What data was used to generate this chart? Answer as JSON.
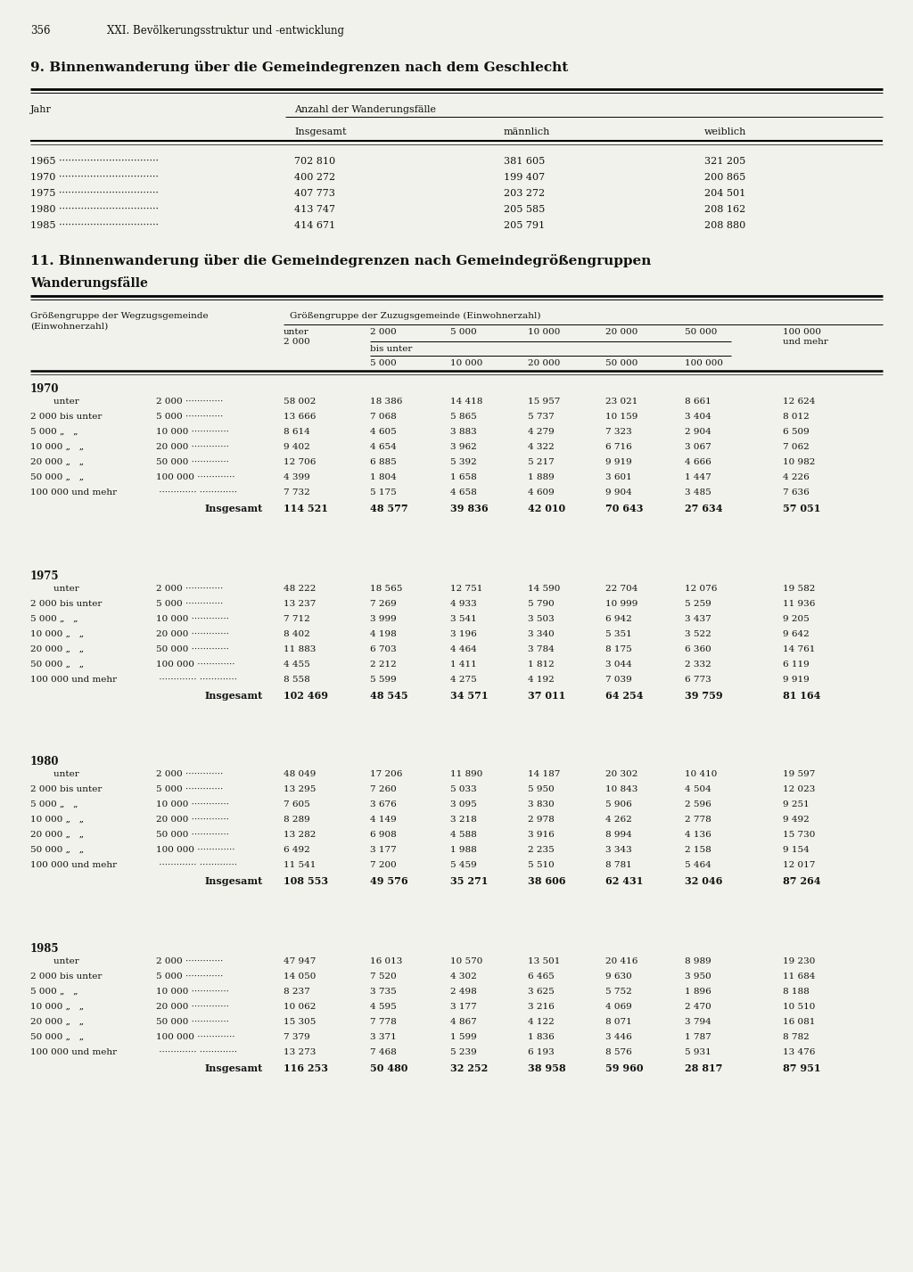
{
  "page_num": "356",
  "chapter": "XXI. Bevölkerungsstruktur und -entwicklung",
  "table1_title": "9. Binnenwanderung über die Gemeindegrenzen nach dem Geschlecht",
  "table1_col_header1": "Jahr",
  "table1_col_header2": "Anzahl der Wanderungsfälle",
  "table1_sub_headers": [
    "Insgesamt",
    "männlich",
    "weiblich"
  ],
  "table1_data": [
    [
      "1965",
      "702 810",
      "381 605",
      "321 205"
    ],
    [
      "1970",
      "400 272",
      "199 407",
      "200 865"
    ],
    [
      "1975",
      "407 773",
      "203 272",
      "204 501"
    ],
    [
      "1980",
      "413 747",
      "205 585",
      "208 162"
    ],
    [
      "1985",
      "414 671",
      "205 791",
      "208 880"
    ]
  ],
  "table2_title": "11. Binnenwanderung über die Gemeindegrenzen nach Gemeindegrößengruppen",
  "table2_subtitle": "Wanderungsfälle",
  "table2_col_left_l1": "Größengruppe der Wegzugsgemeinde",
  "table2_col_left_l2": "(Einwohnerzahl)",
  "table2_col_right_header": "Größengruppe der Zuzugsgemeinde (Einwohnerzahl)",
  "table2_col_bis": "bis unter",
  "table2_years": [
    "1970",
    "1975",
    "1980",
    "1985"
  ],
  "table2_data": {
    "1970": {
      "rows": [
        [
          "58 002",
          "18 386",
          "14 418",
          "15 957",
          "23 021",
          "8 661",
          "12 624"
        ],
        [
          "13 666",
          "7 068",
          "5 865",
          "5 737",
          "10 159",
          "3 404",
          "8 012"
        ],
        [
          "8 614",
          "4 605",
          "3 883",
          "4 279",
          "7 323",
          "2 904",
          "6 509"
        ],
        [
          "9 402",
          "4 654",
          "3 962",
          "4 322",
          "6 716",
          "3 067",
          "7 062"
        ],
        [
          "12 706",
          "6 885",
          "5 392",
          "5 217",
          "9 919",
          "4 666",
          "10 982"
        ],
        [
          "4 399",
          "1 804",
          "1 658",
          "1 889",
          "3 601",
          "1 447",
          "4 226"
        ],
        [
          "7 732",
          "5 175",
          "4 658",
          "4 609",
          "9 904",
          "3 485",
          "7 636"
        ]
      ],
      "total": [
        "114 521",
        "48 577",
        "39 836",
        "42 010",
        "70 643",
        "27 634",
        "57 051"
      ]
    },
    "1975": {
      "rows": [
        [
          "48 222",
          "18 565",
          "12 751",
          "14 590",
          "22 704",
          "12 076",
          "19 582"
        ],
        [
          "13 237",
          "7 269",
          "4 933",
          "5 790",
          "10 999",
          "5 259",
          "11 936"
        ],
        [
          "7 712",
          "3 999",
          "3 541",
          "3 503",
          "6 942",
          "3 437",
          "9 205"
        ],
        [
          "8 402",
          "4 198",
          "3 196",
          "3 340",
          "5 351",
          "3 522",
          "9 642"
        ],
        [
          "11 883",
          "6 703",
          "4 464",
          "3 784",
          "8 175",
          "6 360",
          "14 761"
        ],
        [
          "4 455",
          "2 212",
          "1 411",
          "1 812",
          "3 044",
          "2 332",
          "6 119"
        ],
        [
          "8 558",
          "5 599",
          "4 275",
          "4 192",
          "7 039",
          "6 773",
          "9 919"
        ]
      ],
      "total": [
        "102 469",
        "48 545",
        "34 571",
        "37 011",
        "64 254",
        "39 759",
        "81 164"
      ]
    },
    "1980": {
      "rows": [
        [
          "48 049",
          "17 206",
          "11 890",
          "14 187",
          "20 302",
          "10 410",
          "19 597"
        ],
        [
          "13 295",
          "7 260",
          "5 033",
          "5 950",
          "10 843",
          "4 504",
          "12 023"
        ],
        [
          "7 605",
          "3 676",
          "3 095",
          "3 830",
          "5 906",
          "2 596",
          "9 251"
        ],
        [
          "8 289",
          "4 149",
          "3 218",
          "2 978",
          "4 262",
          "2 778",
          "9 492"
        ],
        [
          "13 282",
          "6 908",
          "4 588",
          "3 916",
          "8 994",
          "4 136",
          "15 730"
        ],
        [
          "6 492",
          "3 177",
          "1 988",
          "2 235",
          "3 343",
          "2 158",
          "9 154"
        ],
        [
          "11 541",
          "7 200",
          "5 459",
          "5 510",
          "8 781",
          "5 464",
          "12 017"
        ]
      ],
      "total": [
        "108 553",
        "49 576",
        "35 271",
        "38 606",
        "62 431",
        "32 046",
        "87 264"
      ]
    },
    "1985": {
      "rows": [
        [
          "47 947",
          "16 013",
          "10 570",
          "13 501",
          "20 416",
          "8 989",
          "19 230"
        ],
        [
          "14 050",
          "7 520",
          "4 302",
          "6 465",
          "9 630",
          "3 950",
          "11 684"
        ],
        [
          "8 237",
          "3 735",
          "2 498",
          "3 625",
          "5 752",
          "1 896",
          "8 188"
        ],
        [
          "10 062",
          "4 595",
          "3 177",
          "3 216",
          "4 069",
          "2 470",
          "10 510"
        ],
        [
          "15 305",
          "7 778",
          "4 867",
          "4 122",
          "8 071",
          "3 794",
          "16 081"
        ],
        [
          "7 379",
          "3 371",
          "1 599",
          "1 836",
          "3 446",
          "1 787",
          "8 782"
        ],
        [
          "13 273",
          "7 468",
          "5 239",
          "6 193",
          "8 576",
          "5 931",
          "13 476"
        ]
      ],
      "total": [
        "116 253",
        "50 480",
        "32 252",
        "38 958",
        "59 960",
        "28 817",
        "87 951"
      ]
    }
  },
  "bg_color": "#f2f2ec",
  "text_color": "#111111"
}
